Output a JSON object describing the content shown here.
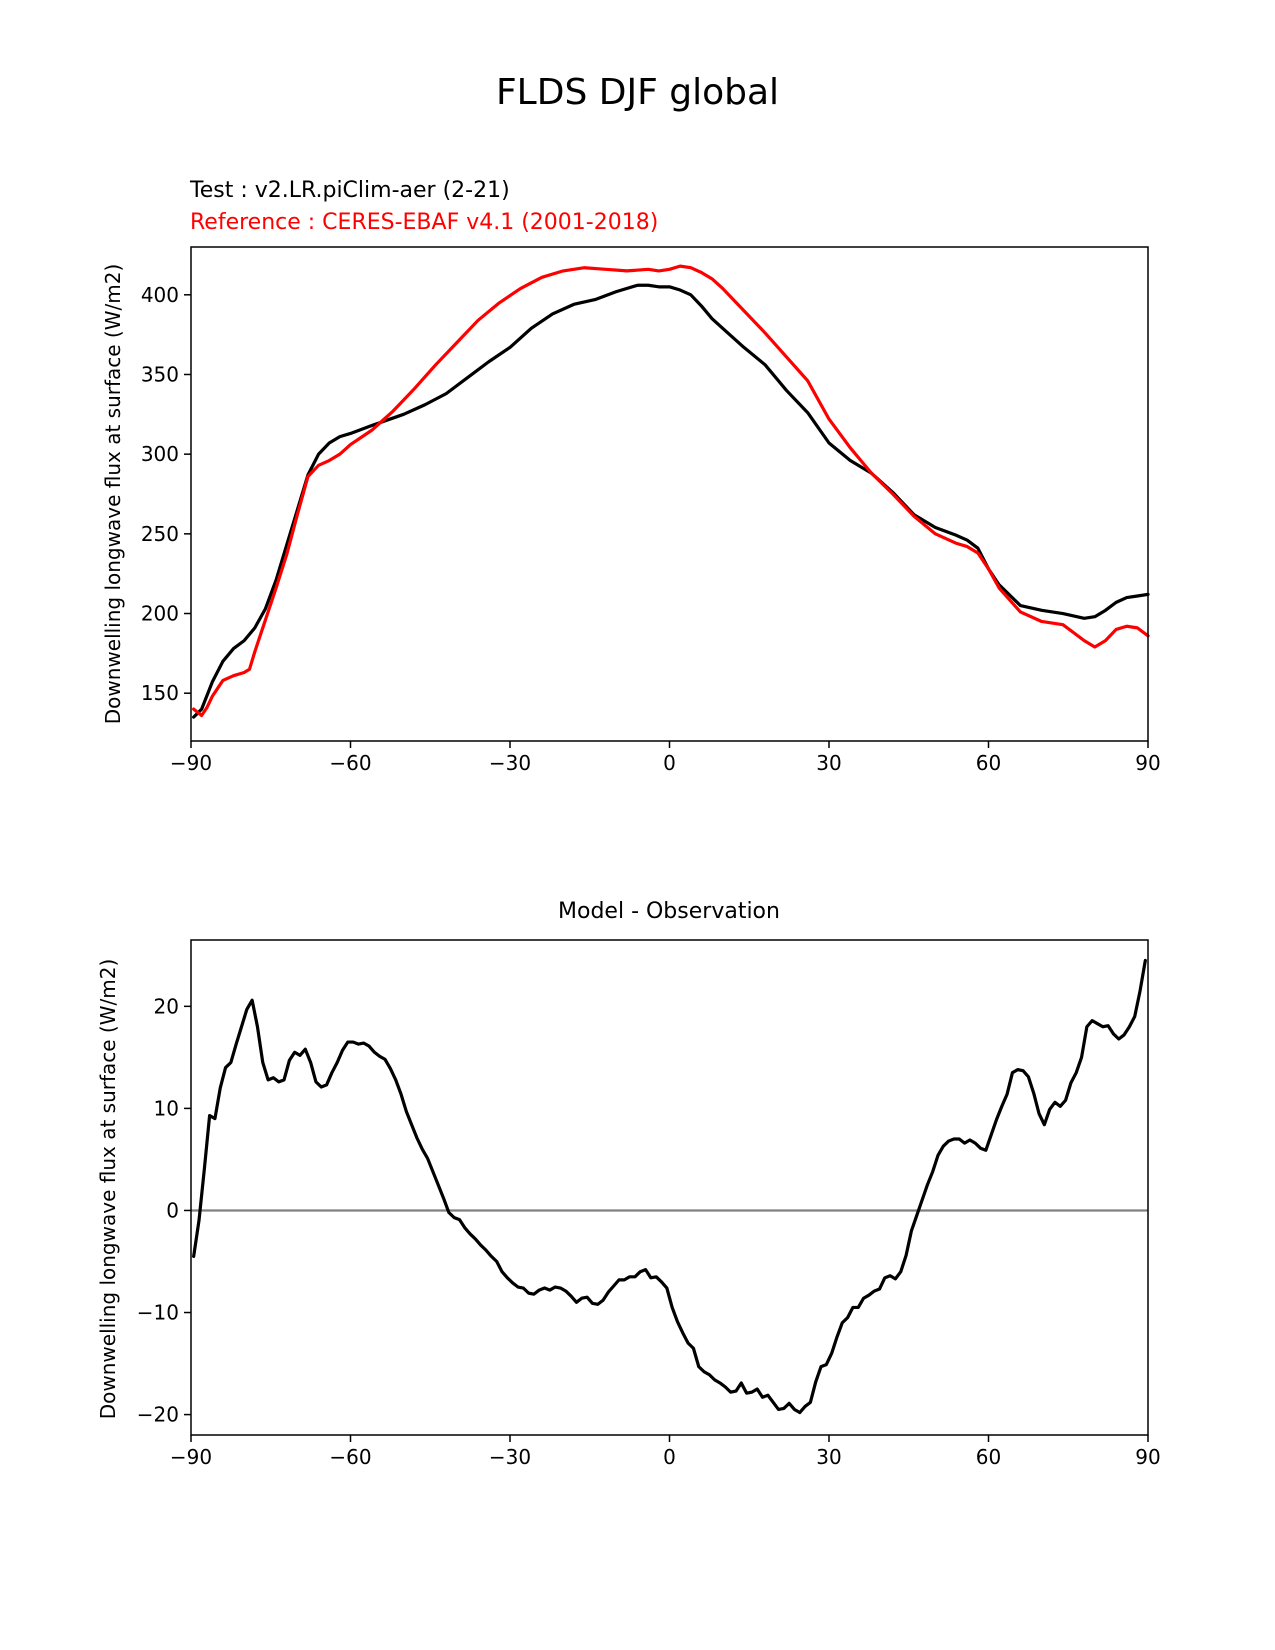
{
  "figure": {
    "title": "FLDS DJF global"
  },
  "chart_data": [
    {
      "type": "line",
      "test_label": "Test : v2.LR.piClim-aer (2-21)",
      "reference_label": "Reference : CERES-EBAF v4.1 (2001-2018)",
      "ylabel": "Downwelling longwave flux at surface (W/m2)",
      "xlabel": "",
      "xlim": [
        -90,
        90
      ],
      "ylim": [
        120,
        430
      ],
      "xticks": [
        -90,
        -60,
        -30,
        0,
        30,
        60,
        90
      ],
      "xtick_labels": [
        "−90",
        "−60",
        "−30",
        "0",
        "30",
        "60",
        "90"
      ],
      "yticks": [
        150,
        200,
        250,
        300,
        350,
        400
      ],
      "ytick_labels": [
        "150",
        "200",
        "250",
        "300",
        "350",
        "400"
      ],
      "colors": {
        "test": "#000000",
        "reference": "#ff0000"
      },
      "series": [
        {
          "name": "Test : v2.LR.piClim-aer (2-21)",
          "x": [
            -89.5,
            -88,
            -86,
            -84,
            -82,
            -80,
            -78,
            -76,
            -74,
            -72,
            -70,
            -68,
            -66,
            -64,
            -62,
            -60,
            -56,
            -50,
            -46,
            -42,
            -38,
            -34,
            -30,
            -26,
            -22,
            -18,
            -14,
            -10,
            -6,
            -4,
            -2,
            0,
            2,
            4,
            6,
            8,
            10,
            14,
            18,
            22,
            26,
            30,
            34,
            38,
            42,
            46,
            50,
            54,
            56,
            58,
            60,
            62,
            66,
            70,
            74,
            78,
            80,
            82,
            84,
            86,
            88,
            90
          ],
          "values": [
            135,
            140,
            157,
            170,
            178,
            183,
            191,
            203,
            221,
            243,
            265,
            287,
            300,
            307,
            311,
            313,
            318,
            325,
            331,
            338,
            348,
            358,
            367,
            379,
            388,
            394,
            397,
            402,
            406,
            406,
            405,
            405,
            403,
            400,
            393,
            385,
            379,
            367,
            356,
            340,
            326,
            307,
            296,
            288,
            276,
            262,
            254,
            249,
            246,
            241,
            228,
            218,
            205,
            202,
            200,
            197,
            198,
            202,
            207,
            210,
            211,
            212
          ]
        },
        {
          "name": "Reference : CERES-EBAF v4.1 (2001-2018)",
          "x": [
            -89.5,
            -88,
            -87,
            -86,
            -84,
            -82,
            -80,
            -79,
            -78,
            -76,
            -74,
            -72,
            -70,
            -68,
            -66,
            -64,
            -62,
            -60,
            -56,
            -52,
            -48,
            -44,
            -40,
            -36,
            -32,
            -28,
            -24,
            -20,
            -16,
            -12,
            -8,
            -4,
            -2,
            0,
            2,
            4,
            6,
            8,
            10,
            14,
            18,
            22,
            26,
            30,
            34,
            38,
            42,
            46,
            50,
            54,
            56,
            58,
            60,
            62,
            66,
            70,
            74,
            76,
            78,
            80,
            82,
            84,
            86,
            88,
            90
          ],
          "values": [
            140,
            136,
            141,
            148,
            158,
            161,
            163,
            165,
            176,
            196,
            216,
            237,
            262,
            286,
            293,
            296,
            300,
            306,
            315,
            327,
            341,
            356,
            370,
            384,
            395,
            404,
            411,
            415,
            417,
            416,
            415,
            416,
            415,
            416,
            418,
            417,
            414,
            410,
            404,
            390,
            376,
            361,
            346,
            322,
            304,
            288,
            275,
            261,
            250,
            244,
            242,
            238,
            228,
            216,
            201,
            195,
            193,
            188,
            183,
            179,
            183,
            190,
            192,
            191,
            186
          ]
        }
      ]
    },
    {
      "type": "line",
      "title": "Model - Observation",
      "ylabel": "Downwelling longwave flux at surface (W/m2)",
      "xlabel": "",
      "xlim": [
        -90,
        90
      ],
      "ylim": [
        -22,
        26.5
      ],
      "xticks": [
        -90,
        -60,
        -30,
        0,
        30,
        60,
        90
      ],
      "xtick_labels": [
        "−90",
        "−60",
        "−30",
        "0",
        "30",
        "60",
        "90"
      ],
      "yticks": [
        -20,
        -10,
        0,
        10,
        20
      ],
      "ytick_labels": [
        "−20",
        "−10",
        "0",
        "10",
        "20"
      ],
      "colors": {
        "difference": "#000000",
        "zero_line": "#808080"
      },
      "zero_line": 0,
      "series": [
        {
          "x": [
            -89.5,
            -88.5,
            -87.5,
            -86.5,
            -85.5,
            -84.5,
            -83.5,
            -82.5,
            -81.5,
            -80.5,
            -79.5,
            -78.5,
            -77.5,
            -76.5,
            -75.5,
            -74.5,
            -73.5,
            -72.5,
            -71.5,
            -70.5,
            -69.5,
            -68.5,
            -67.5,
            -66.5,
            -65.5,
            -64.5,
            -63.5,
            -62.5,
            -61.5,
            -60.5,
            -59.5,
            -58.5,
            -57.5,
            -56.5,
            -55.5,
            -54.5,
            -53.5,
            -52.5,
            -51.5,
            -50.5,
            -49.5,
            -48.5,
            -47.5,
            -46.5,
            -45.5,
            -44.5,
            -43.5,
            -42.5,
            -41.5,
            -40.5,
            -39.5,
            -38.5,
            -37.5,
            -36.5,
            -35.5,
            -34.5,
            -33.5,
            -32.5,
            -31.5,
            -30.5,
            -29.5,
            -28.5,
            -27.5,
            -26.5,
            -25.5,
            -24.5,
            -23.5,
            -22.5,
            -21.5,
            -20.5,
            -19.5,
            -18.5,
            -17.5,
            -16.5,
            -15.5,
            -14.5,
            -13.5,
            -12.5,
            -11.5,
            -10.5,
            -9.5,
            -8.5,
            -7.5,
            -6.5,
            -5.5,
            -4.5,
            -3.5,
            -2.5,
            -1.5,
            -0.5,
            0.5,
            1.5,
            2.5,
            3.5,
            4.5,
            5.5,
            6.5,
            7.5,
            8.5,
            9.5,
            10.5,
            11.5,
            12.5,
            13.5,
            14.5,
            15.5,
            16.5,
            17.5,
            18.5,
            19.5,
            20.5,
            21.5,
            22.5,
            23.5,
            24.5,
            25.5,
            26.5,
            27.5,
            28.5,
            29.5,
            30.5,
            31.5,
            32.5,
            33.5,
            34.5,
            35.5,
            36.5,
            37.5,
            38.5,
            39.5,
            40.5,
            41.5,
            42.5,
            43.5,
            44.5,
            45.5,
            46.5,
            47.5,
            48.5,
            49.5,
            50.5,
            51.5,
            52.5,
            53.5,
            54.5,
            55.5,
            56.5,
            57.5,
            58.5,
            59.5,
            60.5,
            61.5,
            62.5,
            63.5,
            64.5,
            65.5,
            66.5,
            67.5,
            68.5,
            69.5,
            70.5,
            71.5,
            72.5,
            73.5,
            74.5,
            75.5,
            76.5,
            77.5,
            78.5,
            79.5,
            80.5,
            81.5,
            82.5,
            83.5,
            84.5,
            85.5,
            86.5,
            87.5,
            88.5,
            89.5
          ],
          "values": [
            -4.5,
            -1.0,
            4.0,
            9.3,
            9.0,
            12.0,
            14.0,
            14.5,
            16.3,
            18.0,
            19.7,
            20.6,
            18.0,
            14.5,
            12.8,
            13.0,
            12.6,
            12.8,
            14.7,
            15.5,
            15.2,
            15.8,
            14.5,
            12.6,
            12.1,
            12.3,
            13.5,
            14.5,
            15.7,
            16.5,
            16.5,
            16.3,
            16.4,
            16.1,
            15.5,
            15.1,
            14.8,
            13.9,
            12.8,
            11.4,
            9.7,
            8.4,
            7.1,
            6.0,
            5.1,
            3.8,
            2.5,
            1.2,
            -0.2,
            -0.7,
            -0.9,
            -1.7,
            -2.3,
            -2.8,
            -3.4,
            -3.9,
            -4.5,
            -5.0,
            -6.0,
            -6.6,
            -7.1,
            -7.5,
            -7.6,
            -8.1,
            -8.2,
            -7.8,
            -7.6,
            -7.8,
            -7.5,
            -7.6,
            -7.9,
            -8.4,
            -9.0,
            -8.6,
            -8.5,
            -9.1,
            -9.2,
            -8.8,
            -8.0,
            -7.4,
            -6.8,
            -6.8,
            -6.5,
            -6.5,
            -6.0,
            -5.8,
            -6.6,
            -6.5,
            -7.0,
            -7.6,
            -9.5,
            -10.9,
            -12.0,
            -13.0,
            -13.5,
            -15.3,
            -15.8,
            -16.1,
            -16.6,
            -16.9,
            -17.3,
            -17.8,
            -17.7,
            -16.9,
            -17.9,
            -17.8,
            -17.5,
            -18.3,
            -18.1,
            -18.8,
            -19.5,
            -19.4,
            -18.9,
            -19.5,
            -19.8,
            -19.2,
            -18.8,
            -16.8,
            -15.3,
            -15.1,
            -14.0,
            -12.4,
            -11.0,
            -10.5,
            -9.5,
            -9.5,
            -8.6,
            -8.3,
            -7.9,
            -7.7,
            -6.6,
            -6.4,
            -6.7,
            -6.0,
            -4.4,
            -2.0,
            -0.5,
            1.0,
            2.5,
            3.8,
            5.4,
            6.3,
            6.8,
            7.0,
            7.0,
            6.6,
            6.9,
            6.6,
            6.1,
            5.9,
            7.4,
            8.9,
            10.2,
            11.4,
            13.5,
            13.8,
            13.7,
            13.1,
            11.5,
            9.5,
            8.4,
            9.9,
            10.6,
            10.2,
            10.8,
            12.5,
            13.5,
            15.0,
            18.0,
            18.6,
            18.3,
            18.0,
            18.1,
            17.3,
            16.8,
            17.2,
            18.0,
            19.0,
            21.5,
            24.5
          ]
        }
      ]
    }
  ]
}
